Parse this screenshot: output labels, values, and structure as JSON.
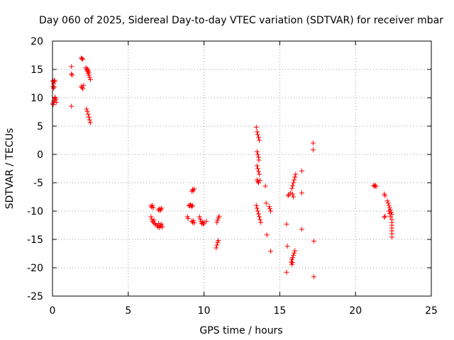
{
  "chart_data": {
    "type": "scatter",
    "title": "Day 060 of 2025, Sidereal Day-to-day VTEC variation (SDTVAR) for receiver mbar",
    "xlabel": "GPS time / hours",
    "ylabel": "SDTVAR / TECUs",
    "xlim": [
      0,
      25
    ],
    "ylim": [
      -25,
      20
    ],
    "xticks": [
      "0",
      "5",
      "10",
      "15",
      "20",
      "25"
    ],
    "yticks": [
      "20",
      "15",
      "10",
      "5",
      "0",
      "-5",
      "-10",
      "-15",
      "-20",
      "-25"
    ],
    "xtick_values": [
      0,
      5,
      10,
      15,
      20,
      25
    ],
    "ytick_values": [
      20,
      15,
      10,
      5,
      0,
      -5,
      -10,
      -15,
      -20,
      -25
    ],
    "grid": true,
    "marker": "+",
    "color": "#ff0000",
    "series": [
      {
        "points": [
          [
            0.02,
            13.0
          ],
          [
            0.05,
            12.8
          ],
          [
            0.08,
            12.5
          ],
          [
            0.12,
            13.1
          ],
          [
            0.15,
            12.9
          ],
          [
            0.03,
            12.0
          ],
          [
            0.07,
            11.7
          ],
          [
            0.1,
            11.9
          ],
          [
            0.02,
            9.0
          ],
          [
            0.05,
            8.8
          ],
          [
            0.08,
            9.3
          ],
          [
            0.12,
            9.6
          ],
          [
            0.15,
            9.9
          ],
          [
            0.18,
            10.1
          ],
          [
            0.22,
            9.7
          ],
          [
            0.25,
            9.2
          ],
          [
            1.25,
            15.5
          ],
          [
            1.25,
            14.2
          ],
          [
            1.3,
            14.0
          ],
          [
            1.25,
            8.5
          ],
          [
            1.9,
            17.0
          ],
          [
            1.95,
            16.9
          ],
          [
            2.0,
            16.8
          ],
          [
            1.9,
            12.0
          ],
          [
            1.95,
            11.8
          ],
          [
            2.0,
            11.6
          ],
          [
            2.05,
            12.2
          ],
          [
            2.2,
            15.3
          ],
          [
            2.25,
            15.0
          ],
          [
            2.3,
            14.7
          ],
          [
            2.35,
            14.3
          ],
          [
            2.4,
            14.0
          ],
          [
            2.45,
            13.6
          ],
          [
            2.5,
            13.2
          ],
          [
            2.3,
            15.1
          ],
          [
            2.35,
            14.8
          ],
          [
            2.4,
            14.5
          ],
          [
            2.25,
            8.0
          ],
          [
            2.3,
            7.6
          ],
          [
            2.35,
            7.1
          ],
          [
            2.4,
            6.6
          ],
          [
            2.45,
            6.1
          ],
          [
            2.5,
            5.6
          ],
          [
            6.5,
            -9.1
          ],
          [
            6.55,
            -9.3
          ],
          [
            6.6,
            -9.0
          ],
          [
            6.65,
            -9.4
          ],
          [
            6.5,
            -11.0
          ],
          [
            6.55,
            -11.4
          ],
          [
            6.6,
            -11.8
          ],
          [
            6.65,
            -12.0
          ],
          [
            6.7,
            -11.6
          ],
          [
            6.75,
            -12.2
          ],
          [
            6.8,
            -12.4
          ],
          [
            6.9,
            -12.5
          ],
          [
            6.95,
            -12.8
          ],
          [
            7.0,
            -12.2
          ],
          [
            7.05,
            -12.9
          ],
          [
            7.1,
            -12.5
          ],
          [
            7.15,
            -12.7
          ],
          [
            7.2,
            -12.3
          ],
          [
            7.25,
            -12.8
          ],
          [
            7.0,
            -9.8
          ],
          [
            7.05,
            -9.6
          ],
          [
            7.1,
            -9.9
          ],
          [
            7.15,
            -9.7
          ],
          [
            7.2,
            -9.5
          ],
          [
            9.0,
            -9.0
          ],
          [
            9.05,
            -9.1
          ],
          [
            9.1,
            -8.9
          ],
          [
            9.15,
            -9.0
          ],
          [
            9.2,
            -9.2
          ],
          [
            9.25,
            -9.0
          ],
          [
            9.2,
            -6.5
          ],
          [
            9.25,
            -6.2
          ],
          [
            9.3,
            -6.4
          ],
          [
            9.35,
            -6.1
          ],
          [
            8.9,
            -11.0
          ],
          [
            8.95,
            -11.3
          ],
          [
            9.2,
            -11.8
          ],
          [
            9.25,
            -12.0
          ],
          [
            9.3,
            -11.7
          ],
          [
            9.35,
            -12.1
          ],
          [
            9.7,
            -11.0
          ],
          [
            9.75,
            -11.4
          ],
          [
            9.8,
            -11.8
          ],
          [
            9.85,
            -12.2
          ],
          [
            9.9,
            -12.0
          ],
          [
            9.95,
            -12.3
          ],
          [
            10.0,
            -12.1
          ],
          [
            10.15,
            -11.8
          ],
          [
            10.8,
            -16.5
          ],
          [
            10.85,
            -16.0
          ],
          [
            10.9,
            -15.5
          ],
          [
            10.95,
            -15.2
          ],
          [
            10.85,
            -12.0
          ],
          [
            10.9,
            -11.6
          ],
          [
            10.95,
            -11.2
          ],
          [
            11.0,
            -10.9
          ],
          [
            13.45,
            4.8
          ],
          [
            13.5,
            4.0
          ],
          [
            13.55,
            3.5
          ],
          [
            13.6,
            3.0
          ],
          [
            13.65,
            2.5
          ],
          [
            13.5,
            0.5
          ],
          [
            13.55,
            0.0
          ],
          [
            13.6,
            -0.5
          ],
          [
            13.62,
            -1.0
          ],
          [
            13.5,
            -2.0
          ],
          [
            13.55,
            -2.5
          ],
          [
            13.6,
            -3.0
          ],
          [
            13.65,
            -3.5
          ],
          [
            13.5,
            -4.5
          ],
          [
            13.55,
            -4.8
          ],
          [
            13.6,
            -5.0
          ],
          [
            13.7,
            -4.6
          ],
          [
            13.45,
            -9.0
          ],
          [
            13.5,
            -9.5
          ],
          [
            13.55,
            -10.0
          ],
          [
            13.6,
            -10.5
          ],
          [
            13.65,
            -11.0
          ],
          [
            13.7,
            -11.5
          ],
          [
            13.75,
            -12.0
          ],
          [
            14.05,
            -5.6
          ],
          [
            14.1,
            -8.6
          ],
          [
            14.15,
            -14.2
          ],
          [
            14.3,
            -9.2
          ],
          [
            14.35,
            -9.6
          ],
          [
            14.4,
            -10.0
          ],
          [
            14.4,
            -17.1
          ],
          [
            15.45,
            -12.3
          ],
          [
            15.5,
            -16.2
          ],
          [
            15.45,
            -20.8
          ],
          [
            15.55,
            -7.3
          ],
          [
            15.6,
            -7.1
          ],
          [
            15.7,
            -6.8
          ],
          [
            15.8,
            -18.5
          ],
          [
            15.85,
            -18.2
          ],
          [
            15.9,
            -17.8
          ],
          [
            15.95,
            -17.4
          ],
          [
            16.0,
            -17.0
          ],
          [
            15.75,
            -19.0
          ],
          [
            15.8,
            -19.4
          ],
          [
            15.85,
            -19.1
          ],
          [
            15.8,
            -6.0
          ],
          [
            15.85,
            -5.5
          ],
          [
            15.9,
            -5.0
          ],
          [
            15.95,
            -4.5
          ],
          [
            16.0,
            -4.0
          ],
          [
            16.05,
            -3.5
          ],
          [
            15.85,
            -7.0
          ],
          [
            15.9,
            -7.5
          ],
          [
            16.45,
            -2.9
          ],
          [
            16.45,
            -6.8
          ],
          [
            16.45,
            -13.2
          ],
          [
            17.2,
            2.0
          ],
          [
            17.2,
            0.8
          ],
          [
            17.25,
            -15.3
          ],
          [
            17.25,
            -21.6
          ],
          [
            21.2,
            -5.5
          ],
          [
            21.25,
            -5.6
          ],
          [
            21.3,
            -5.4
          ],
          [
            21.35,
            -5.7
          ],
          [
            21.9,
            -7.0
          ],
          [
            21.95,
            -7.3
          ],
          [
            21.9,
            -11.1
          ],
          [
            21.95,
            -10.9
          ],
          [
            22.1,
            -8.2
          ],
          [
            22.15,
            -8.6
          ],
          [
            22.2,
            -9.0
          ],
          [
            22.25,
            -9.4
          ],
          [
            22.3,
            -9.8
          ],
          [
            22.35,
            -10.2
          ],
          [
            22.4,
            -10.6
          ],
          [
            22.2,
            -10.0
          ],
          [
            22.25,
            -10.4
          ],
          [
            22.3,
            -11.0
          ],
          [
            22.4,
            -11.5
          ],
          [
            22.4,
            -12.0
          ],
          [
            22.4,
            -12.5
          ],
          [
            22.4,
            -13.0
          ],
          [
            22.4,
            -13.5
          ],
          [
            22.4,
            -14.0
          ],
          [
            22.4,
            -14.6
          ]
        ]
      }
    ]
  }
}
